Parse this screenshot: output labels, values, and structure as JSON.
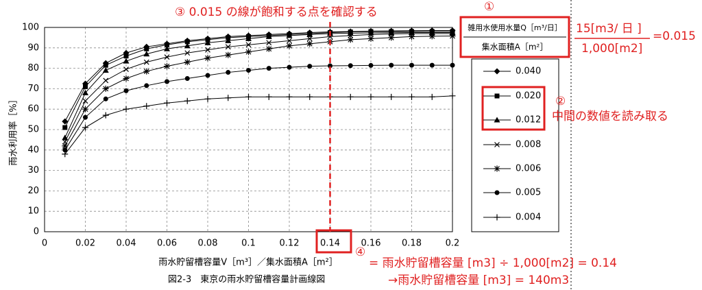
{
  "chart_data": {
    "type": "line",
    "caption": "図2-3　東京の雨水貯留槽容量計画線図",
    "x_label": "雨水貯留槽容量V［m³］／集水面積A［m²］",
    "y_label": "雨水利用率［%］",
    "legend_title": [
      "雑用水使用水量Q［m³/日］",
      "集水面積A［m²］"
    ],
    "x": [
      0.01,
      0.02,
      0.03,
      0.04,
      0.05,
      0.06,
      0.07,
      0.08,
      0.09,
      0.1,
      0.11,
      0.12,
      0.13,
      0.14,
      0.15,
      0.16,
      0.17,
      0.18,
      0.19,
      0.2
    ],
    "series": [
      {
        "name": "0.040",
        "marker": "diamond",
        "color": "#000000",
        "values": [
          54,
          72.5,
          82.5,
          87.5,
          90.5,
          92,
          93.5,
          94.5,
          95.5,
          96,
          96.5,
          97,
          97.5,
          97.8,
          98,
          98.2,
          98.3,
          98.4,
          98.5,
          98.5
        ]
      },
      {
        "name": "0.020",
        "marker": "square",
        "color": "#000000",
        "values": [
          51,
          71,
          81.5,
          86,
          89.5,
          91.5,
          93,
          94,
          95,
          95.5,
          96,
          96.5,
          97,
          97.5,
          97.8,
          98,
          98,
          98,
          98,
          98
        ]
      },
      {
        "name": "0.012",
        "marker": "triangle",
        "color": "#000000",
        "values": [
          46,
          68,
          79,
          83.5,
          87,
          89.5,
          91,
          92.5,
          93.5,
          94.5,
          95.5,
          96,
          96.5,
          97,
          97.2,
          97.3,
          97.4,
          97.5,
          97.5,
          97.5
        ]
      },
      {
        "name": "0.008",
        "marker": "x",
        "color": "#000000",
        "values": [
          44,
          64,
          74,
          79.5,
          83,
          85.5,
          87.5,
          89,
          90.5,
          91.5,
          92.5,
          93.5,
          94.5,
          95.5,
          96,
          96.5,
          96.8,
          97,
          97,
          97
        ]
      },
      {
        "name": "0.006",
        "marker": "star",
        "color": "#000000",
        "values": [
          42,
          60,
          70,
          75,
          78.5,
          81,
          83,
          85,
          86.5,
          88,
          89.5,
          91,
          92,
          93,
          94,
          94.5,
          95,
          95.5,
          95.7,
          95.8
        ]
      },
      {
        "name": "0.005",
        "marker": "circle",
        "color": "#000000",
        "values": [
          40,
          56,
          65,
          69,
          71.5,
          73.5,
          75,
          76.5,
          78,
          79,
          80,
          80.5,
          81,
          81.2,
          81.3,
          81.4,
          81.5,
          81.5,
          81.5,
          81.5
        ]
      },
      {
        "name": "0.004",
        "marker": "plus",
        "color": "#000000",
        "values": [
          38,
          51,
          57,
          60,
          61.5,
          63,
          64,
          65,
          65.5,
          66,
          66,
          66,
          66,
          66,
          66,
          66,
          66,
          66,
          66,
          66.5
        ]
      }
    ],
    "xlim": [
      0,
      0.2
    ],
    "xticks": [
      0,
      0.02,
      0.04,
      0.06,
      0.08,
      0.1,
      0.12,
      0.14,
      0.16,
      0.18,
      0.2
    ],
    "ylim": [
      0,
      100
    ],
    "yticks": [
      0,
      10,
      20,
      30,
      40,
      50,
      60,
      70,
      80,
      90,
      100
    ],
    "grid": true,
    "reference_x": 0.14,
    "reference_color": "#e02020"
  },
  "annotations": {
    "step3": "③ 0.015 の線が飽和する点を確認する",
    "step1": "①",
    "numerator": "15[m3/ 日 ]",
    "denominator": "1,000[m2]",
    "ratio": "=0.015",
    "step2": "②",
    "step2_text": "中間の数値を読み取る",
    "step4": "④",
    "step4_line1": "= 雨水貯留槽容量 [m3] ÷ 1,000[m2] = 0.14",
    "step4_line2": "→雨水貯留槽容量 [m3] = 140m3"
  }
}
